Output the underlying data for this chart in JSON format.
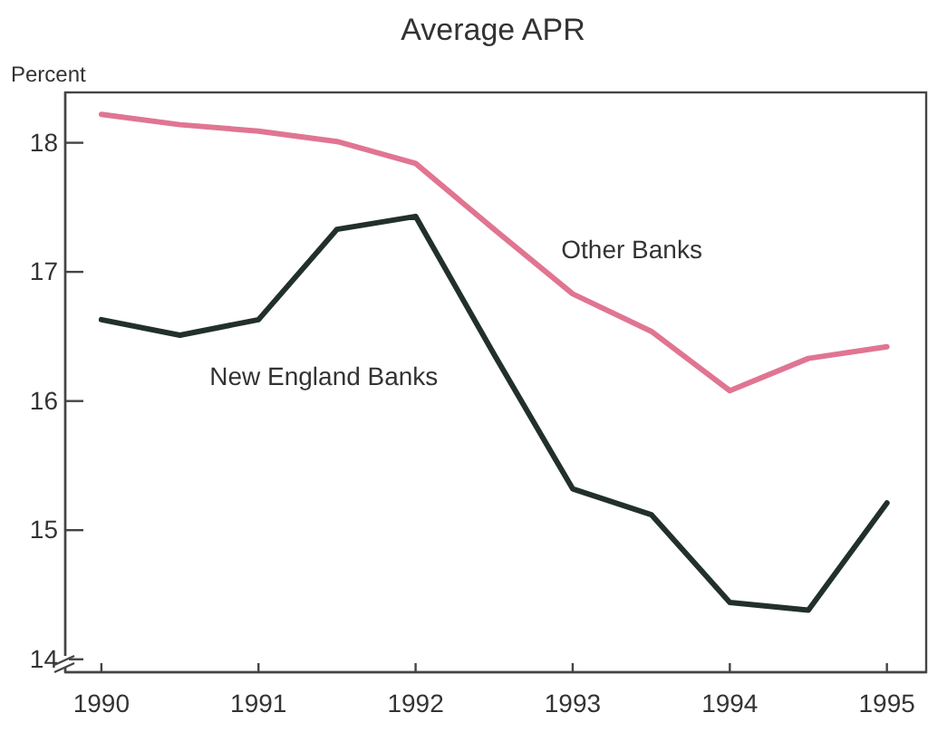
{
  "chart_data": {
    "type": "line",
    "title": "Average APR",
    "ylabel": "Percent",
    "x": [
      1990,
      1990.5,
      1991,
      1991.5,
      1992,
      1992.5,
      1993,
      1993.5,
      1994,
      1994.5,
      1995
    ],
    "series": [
      {
        "name": "New England Banks",
        "color": "#22302c",
        "values": [
          16.63,
          16.51,
          16.63,
          17.33,
          17.43,
          16.36,
          15.32,
          15.12,
          14.44,
          14.38,
          15.21
        ]
      },
      {
        "name": "Other Banks",
        "color": "#e07592",
        "values": [
          18.22,
          18.14,
          18.09,
          18.01,
          17.84,
          17.33,
          16.83,
          16.54,
          16.08,
          16.33,
          16.42
        ]
      }
    ],
    "xlim": [
      1989.77,
      1995.25
    ],
    "xticks": [
      1990,
      1991,
      1992,
      1993,
      1994,
      1995
    ],
    "ylim": [
      13.9,
      18.39
    ],
    "yticks": [
      14,
      15,
      16,
      17,
      18
    ],
    "grid": false,
    "legend": false,
    "marker": "none",
    "line_style": "solid"
  }
}
